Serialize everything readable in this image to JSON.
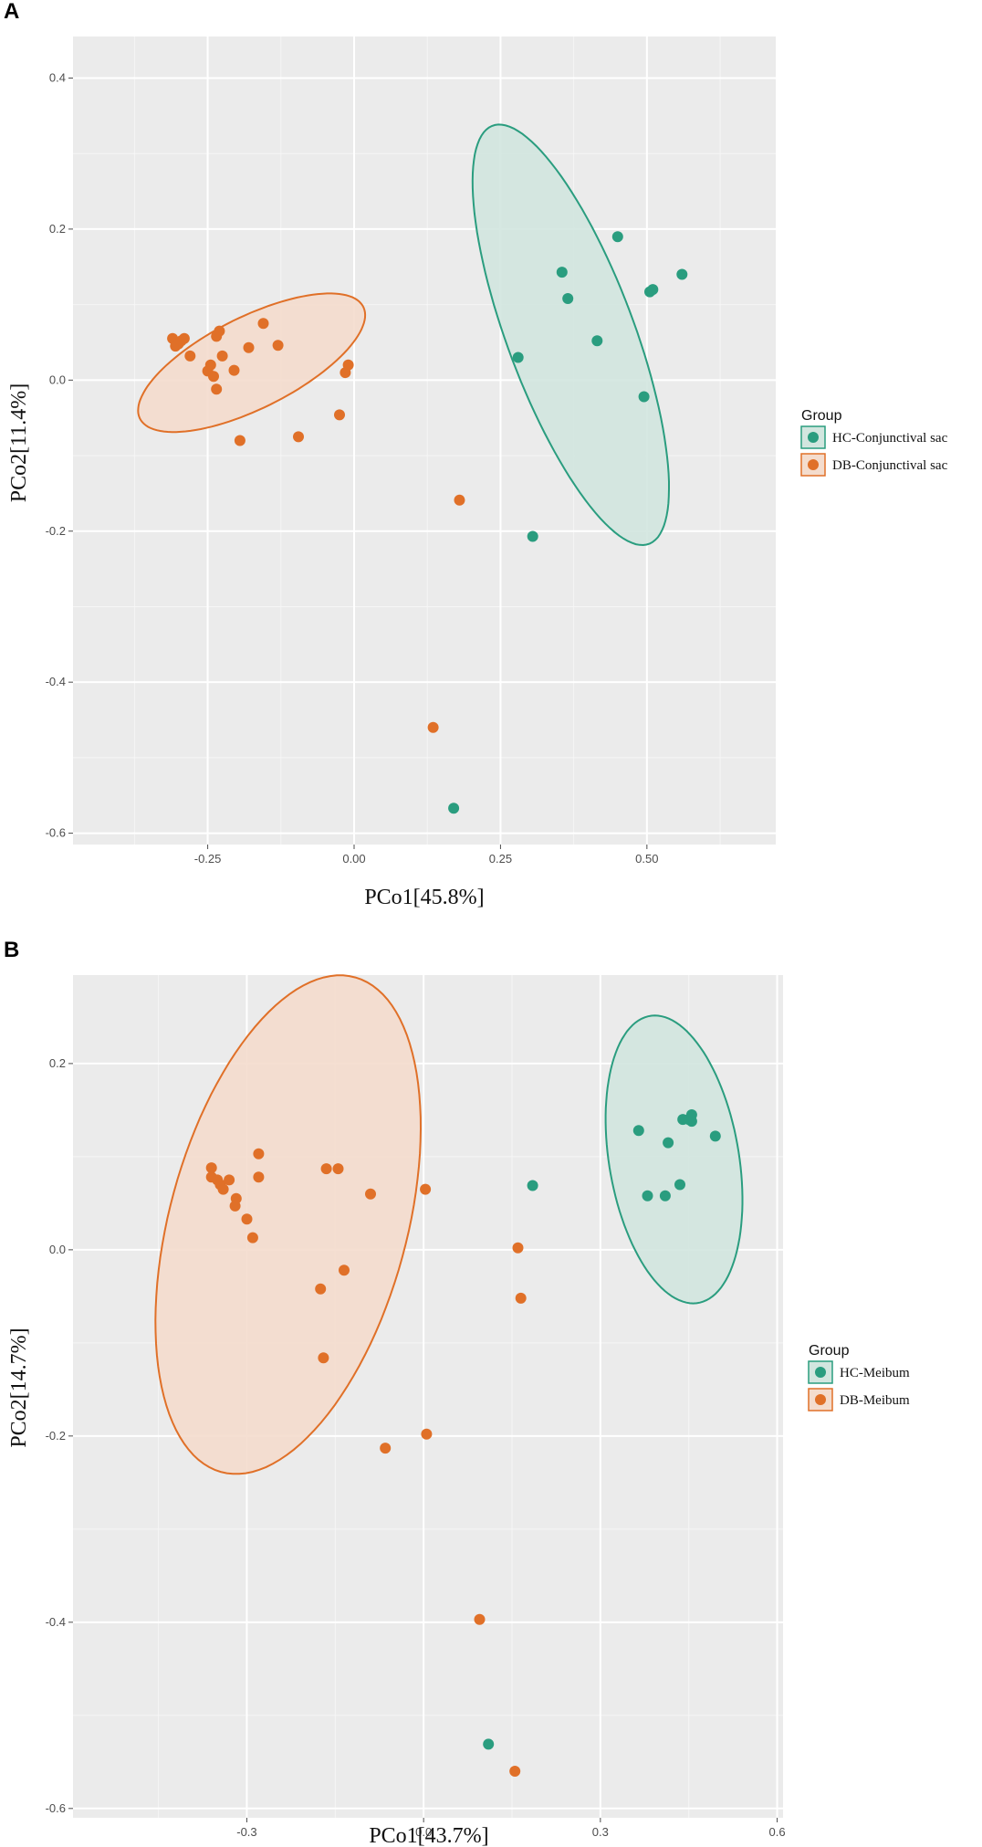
{
  "chart_data": [
    {
      "type": "scatter",
      "panel_label": "A",
      "xlabel": "PCo1[45.8%]",
      "ylabel": "PCo2[11.4%]",
      "xlim": [
        -0.48,
        0.72
      ],
      "ylim": [
        -0.615,
        0.455
      ],
      "x_ticks": [
        -0.25,
        0.0,
        0.25,
        0.5
      ],
      "x_tick_labels": [
        "-0.25",
        "0.00",
        "0.25",
        "0.50"
      ],
      "y_ticks": [
        -0.6,
        -0.4,
        -0.2,
        0.0,
        0.2,
        0.4
      ],
      "y_tick_labels": [
        "-0.6",
        "-0.4",
        "-0.2",
        "0.0",
        "0.2",
        "0.4"
      ],
      "grid": true,
      "legend_title": "Group",
      "legend_position": "right",
      "series": [
        {
          "name": "HC-Conjunctival sac",
          "color": "#2A9D7F",
          "ellipse": {
            "center": [
              0.37,
              0.06
            ],
            "semi_axes": [
              0.104,
              0.308
            ],
            "tilt_deg": 27
          },
          "x": [
            0.28,
            0.355,
            0.365,
            0.45,
            0.415,
            0.505,
            0.51,
            0.56,
            0.495,
            0.305,
            0.17
          ],
          "y": [
            0.03,
            0.143,
            0.108,
            0.19,
            0.052,
            0.117,
            0.12,
            0.14,
            -0.022,
            -0.207,
            -0.567
          ]
        },
        {
          "name": "DB-Conjunctival sac",
          "color": "#E07028",
          "ellipse": {
            "center": [
              -0.175,
              0.023
            ],
            "semi_axes": [
              0.205,
              0.063
            ],
            "tilt_deg": 20
          },
          "x": [
            -0.31,
            -0.305,
            -0.3,
            -0.295,
            -0.29,
            -0.28,
            -0.25,
            -0.245,
            -0.24,
            -0.235,
            -0.235,
            -0.23,
            -0.225,
            -0.205,
            -0.195,
            -0.18,
            -0.155,
            -0.13,
            -0.095,
            -0.025,
            -0.015,
            -0.01,
            0.18,
            0.135
          ],
          "y": [
            0.055,
            0.045,
            0.048,
            0.052,
            0.055,
            0.032,
            0.012,
            0.02,
            0.005,
            0.058,
            -0.012,
            0.065,
            0.032,
            0.013,
            -0.08,
            0.043,
            0.075,
            0.046,
            -0.075,
            -0.046,
            0.01,
            0.02,
            -0.159,
            -0.46
          ]
        }
      ]
    },
    {
      "type": "scatter",
      "panel_label": "B",
      "xlabel": "PCo1[43.7%]",
      "ylabel": "PCo2[14.7%]",
      "xlim": [
        -0.595,
        0.61
      ],
      "ylim": [
        -0.61,
        0.295
      ],
      "x_ticks": [
        -0.3,
        0.0,
        0.3,
        0.6
      ],
      "x_tick_labels": [
        "-0.3",
        "0.0",
        "0.3",
        "0.6"
      ],
      "y_ticks": [
        -0.6,
        -0.4,
        -0.2,
        0.0,
        0.2
      ],
      "y_tick_labels": [
        "-0.6",
        "-0.4",
        "-0.2",
        "0.0",
        "0.2"
      ],
      "grid": true,
      "legend_title": "Group",
      "legend_position": "right",
      "series": [
        {
          "name": "HC-Meibum",
          "color": "#2A9D7F",
          "ellipse": {
            "center": [
              0.425,
              0.097
            ],
            "semi_axes": [
              0.107,
              0.161
            ],
            "tilt_deg": 22
          },
          "x": [
            0.185,
            0.365,
            0.38,
            0.41,
            0.415,
            0.435,
            0.44,
            0.45,
            0.455,
            0.455,
            0.495
          ],
          "y": [
            0.069,
            0.128,
            0.058,
            0.058,
            0.115,
            0.07,
            0.14,
            0.14,
            0.145,
            0.138,
            0.122
          ],
          "extra": {
            "x": [
              0.11
            ],
            "y": [
              -0.531
            ]
          }
        },
        {
          "name": "DB-Meibum",
          "color": "#E07028",
          "ellipse": {
            "center": [
              -0.23,
              0.027
            ],
            "semi_axes": [
              0.188,
              0.295
            ],
            "tilt_deg": -33
          },
          "x": [
            -0.36,
            -0.36,
            -0.35,
            -0.345,
            -0.34,
            -0.33,
            -0.32,
            -0.318,
            -0.3,
            -0.29,
            -0.28,
            -0.28,
            -0.175,
            -0.17,
            -0.165,
            -0.145,
            -0.135,
            -0.09,
            -0.065,
            0.003,
            0.005,
            0.095,
            0.16,
            0.165,
            0.155
          ],
          "y": [
            0.088,
            0.078,
            0.075,
            0.07,
            0.065,
            0.075,
            0.047,
            0.055,
            0.033,
            0.013,
            0.078,
            0.103,
            -0.042,
            -0.116,
            0.087,
            0.087,
            -0.022,
            0.06,
            -0.213,
            0.065,
            -0.198,
            -0.397,
            0.002,
            -0.052,
            -0.56
          ]
        }
      ]
    }
  ]
}
